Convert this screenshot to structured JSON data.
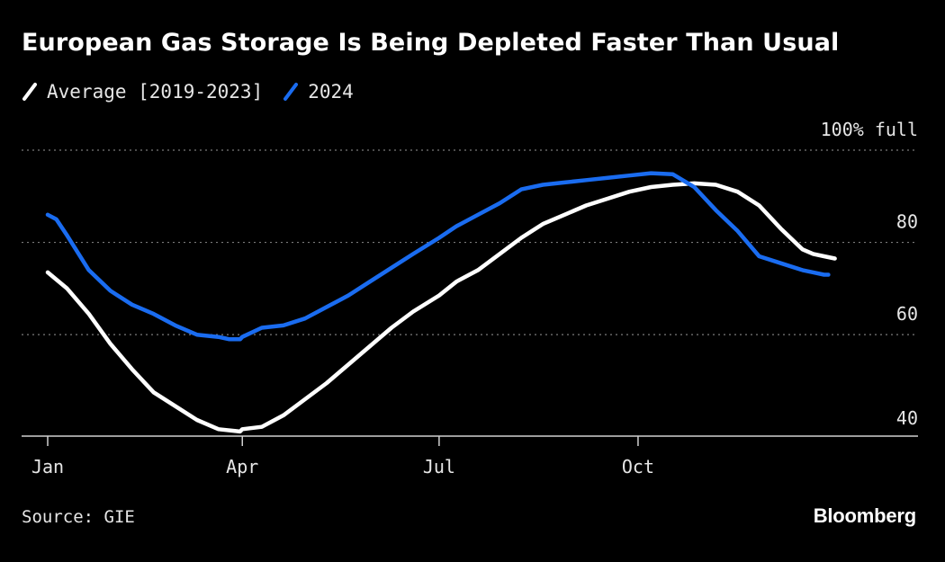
{
  "header": {
    "title": "European Gas Storage Is Being Depleted Faster Than Usual"
  },
  "legend": [
    {
      "label": "Average [2019-2023]",
      "color": "#ffffff"
    },
    {
      "label": "2024",
      "color": "#1a6cf0"
    }
  ],
  "footer": {
    "source": "Source: GIE",
    "brand": "Bloomberg"
  },
  "chart_data": {
    "type": "line",
    "x_unit": "day of year",
    "xlim": [
      1,
      366
    ],
    "ylim": [
      38,
      100
    ],
    "x_ticks": [
      {
        "label": "Jan",
        "value": 1
      },
      {
        "label": "Apr",
        "value": 91
      },
      {
        "label": "Jul",
        "value": 182
      },
      {
        "label": "Oct",
        "value": 274
      }
    ],
    "y_ticks": [
      {
        "label": "100% full",
        "value": 100
      },
      {
        "label": "80",
        "value": 80
      },
      {
        "label": "60",
        "value": 60
      },
      {
        "label": "40",
        "value": 40
      }
    ],
    "gridlines": [
      60,
      80,
      100
    ],
    "grid": true,
    "legend_placement": "top-left",
    "series": [
      {
        "name": "Average [2019-2023]",
        "color": "#ffffff",
        "x": [
          1,
          10,
          20,
          30,
          40,
          50,
          60,
          70,
          80,
          90,
          91,
          100,
          110,
          120,
          130,
          140,
          150,
          160,
          170,
          182,
          190,
          200,
          210,
          220,
          230,
          240,
          250,
          260,
          270,
          280,
          290,
          300,
          310,
          320,
          330,
          340,
          350,
          355,
          360,
          365
        ],
        "y": [
          73.5,
          70.0,
          64.5,
          58.0,
          52.5,
          47.5,
          44.5,
          41.5,
          39.5,
          39.0,
          39.5,
          40.0,
          42.5,
          46.0,
          49.5,
          53.5,
          57.5,
          61.5,
          65.0,
          68.5,
          71.5,
          74.0,
          77.5,
          81.0,
          84.0,
          86.0,
          88.0,
          89.5,
          91.0,
          92.0,
          92.5,
          92.8,
          92.5,
          91.0,
          88.0,
          83.0,
          78.5,
          77.5,
          77.0,
          76.5
        ]
      },
      {
        "name": "2024",
        "color": "#1a6cf0",
        "x": [
          1,
          5,
          10,
          20,
          30,
          40,
          50,
          60,
          70,
          80,
          85,
          90,
          91,
          100,
          110,
          120,
          130,
          140,
          150,
          160,
          170,
          182,
          190,
          200,
          210,
          220,
          230,
          240,
          250,
          260,
          270,
          280,
          290,
          300,
          310,
          320,
          330,
          340,
          350,
          355,
          360,
          362
        ],
        "y": [
          86.0,
          85.0,
          81.5,
          74.0,
          69.5,
          66.5,
          64.5,
          62.0,
          60.0,
          59.5,
          59.0,
          59.0,
          59.5,
          61.5,
          62.0,
          63.5,
          66.0,
          68.5,
          71.5,
          74.5,
          77.5,
          81.0,
          83.5,
          86.0,
          88.5,
          91.5,
          92.5,
          93.0,
          93.5,
          94.0,
          94.5,
          95.0,
          94.8,
          92.0,
          87.0,
          82.5,
          77.0,
          75.5,
          74.0,
          73.5,
          73.0,
          73.0
        ]
      }
    ]
  }
}
